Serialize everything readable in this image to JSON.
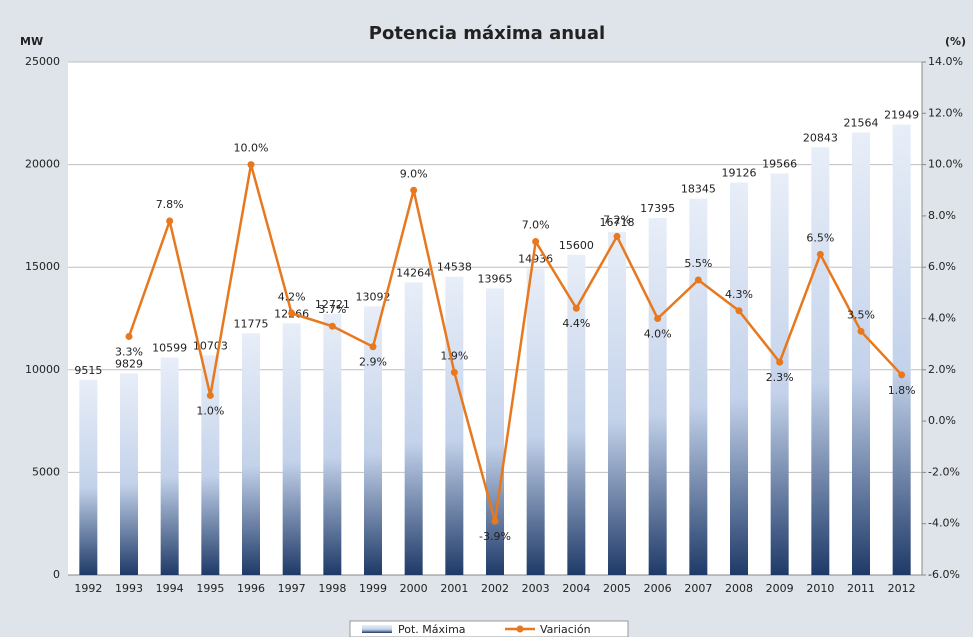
{
  "chart_data": {
    "type": "bar-line",
    "title": "Potencia máxima anual",
    "y_label": "MW",
    "y2_label": "(%)",
    "categories": [
      "1992",
      "1993",
      "1994",
      "1995",
      "1996",
      "1997",
      "1998",
      "1999",
      "2000",
      "2001",
      "2002",
      "2003",
      "2004",
      "2005",
      "2006",
      "2007",
      "2008",
      "2009",
      "2010",
      "2011",
      "2012"
    ],
    "series": [
      {
        "name": "Pot. Máxima",
        "color": "#1f3a68",
        "values": [
          9515,
          9829,
          10599,
          10703,
          11775,
          12266,
          12721,
          13092,
          14264,
          14538,
          13965,
          14936,
          15600,
          16718,
          17395,
          18345,
          19126,
          19566,
          20843,
          21564,
          21949
        ]
      },
      {
        "name": "Variación",
        "color": "#e8781e",
        "axis": "y2",
        "values": [
          null,
          3.3,
          7.8,
          1.0,
          10.0,
          4.2,
          3.7,
          2.9,
          9.0,
          1.9,
          -3.9,
          7.0,
          4.4,
          7.2,
          4.0,
          5.5,
          4.3,
          2.3,
          6.5,
          3.5,
          1.8
        ],
        "value_labels": [
          null,
          "3.3%",
          "7.8%",
          "1.0%",
          "10.0%",
          "4.2%",
          "3.7%",
          "2.9%",
          "9.0%",
          "1.9%",
          "-3.9%",
          "7.0%",
          "4.4%",
          "7.2%",
          "4.0%",
          "5.5%",
          "4.3%",
          "2.3%",
          "6.5%",
          "3.5%",
          "1.8%"
        ]
      }
    ],
    "ylim": [
      0,
      25000
    ],
    "yticks": [
      0,
      5000,
      10000,
      15000,
      20000,
      25000
    ],
    "y2lim": [
      -6,
      14
    ],
    "y2ticks": [
      {
        "value": -6,
        "label": "-6.0%"
      },
      {
        "value": -4,
        "label": "-4.0%"
      },
      {
        "value": -2,
        "label": "-2.0%"
      },
      {
        "value": 0,
        "label": "0.0%"
      },
      {
        "value": 2,
        "label": "2.0%"
      },
      {
        "value": 4,
        "label": "4.0%"
      },
      {
        "value": 6,
        "label": "6.0%"
      },
      {
        "value": 8,
        "label": "8.0%"
      },
      {
        "value": 10,
        "label": "10.0%"
      },
      {
        "value": 12,
        "label": "12.0%"
      },
      {
        "value": 14,
        "label": "14.0%"
      }
    ],
    "grid": true
  }
}
